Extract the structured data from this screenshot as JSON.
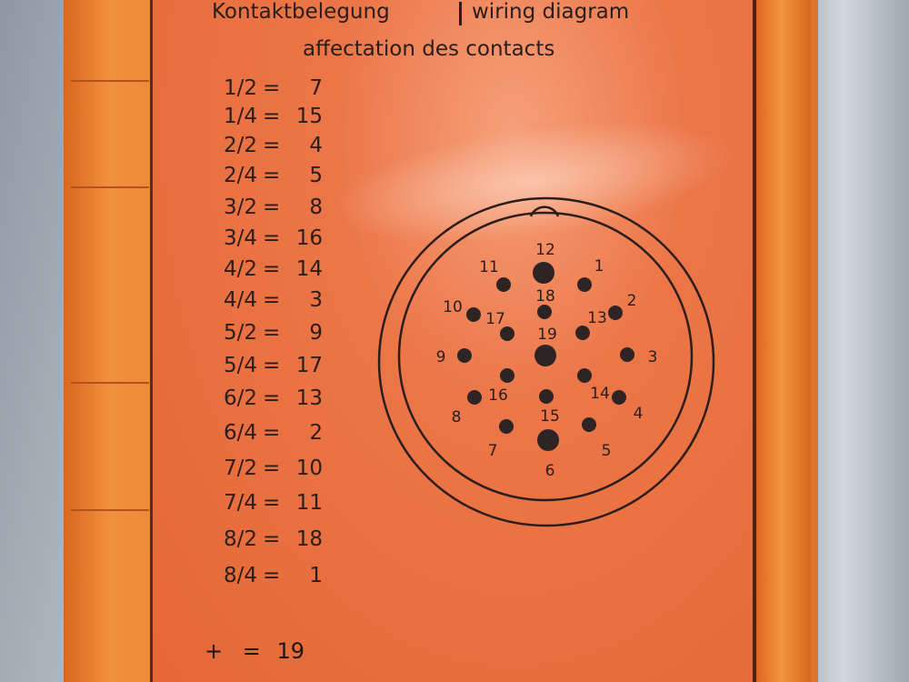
{
  "header": {
    "title_de": "Kontaktbelegung",
    "title_en": "wiring diagram",
    "title_fr": "affectation des contacts"
  },
  "assignments": [
    {
      "key": "1/2",
      "value": "7"
    },
    {
      "key": "1/4",
      "value": "15"
    },
    {
      "key": "2/2",
      "value": "4"
    },
    {
      "key": "2/4",
      "value": "5"
    },
    {
      "key": "3/2",
      "value": "8"
    },
    {
      "key": "3/4",
      "value": "16"
    },
    {
      "key": "4/2",
      "value": "14"
    },
    {
      "key": "4/4",
      "value": "3"
    },
    {
      "key": "5/2",
      "value": "9"
    },
    {
      "key": "5/4",
      "value": "17"
    },
    {
      "key": "6/2",
      "value": "13"
    },
    {
      "key": "6/4",
      "value": "2"
    },
    {
      "key": "7/2",
      "value": "10"
    },
    {
      "key": "7/4",
      "value": "11"
    },
    {
      "key": "8/2",
      "value": "18"
    },
    {
      "key": "8/4",
      "value": "1"
    }
  ],
  "plus": {
    "key": "+",
    "value": "19"
  },
  "equals_sign": "=",
  "connector_pins": [
    "1",
    "2",
    "3",
    "4",
    "5",
    "6",
    "7",
    "8",
    "9",
    "10",
    "11",
    "12",
    "13",
    "14",
    "15",
    "16",
    "17",
    "18",
    "19"
  ],
  "colors": {
    "label": "#e56836",
    "ink": "#2b1d1a",
    "casing": "#e0742e"
  }
}
